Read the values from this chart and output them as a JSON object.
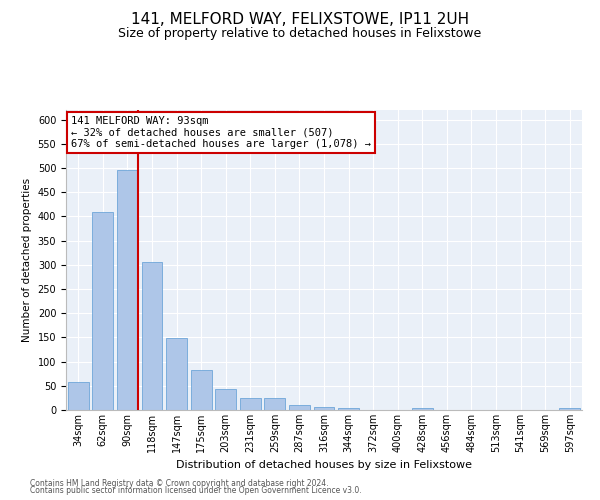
{
  "title": "141, MELFORD WAY, FELIXSTOWE, IP11 2UH",
  "subtitle": "Size of property relative to detached houses in Felixstowe",
  "xlabel": "Distribution of detached houses by size in Felixstowe",
  "ylabel": "Number of detached properties",
  "bar_color": "#aec6e8",
  "bar_edge_color": "#5b9bd5",
  "background_color": "#eaf0f8",
  "grid_color": "#ffffff",
  "annotation_box_color": "#cc0000",
  "annotation_line1": "141 MELFORD WAY: 93sqm",
  "annotation_line2": "← 32% of detached houses are smaller (507)",
  "annotation_line3": "67% of semi-detached houses are larger (1,078) →",
  "vline_color": "#cc0000",
  "vline_x_idx": 2,
  "categories": [
    "34sqm",
    "62sqm",
    "90sqm",
    "118sqm",
    "147sqm",
    "175sqm",
    "203sqm",
    "231sqm",
    "259sqm",
    "287sqm",
    "316sqm",
    "344sqm",
    "372sqm",
    "400sqm",
    "428sqm",
    "456sqm",
    "484sqm",
    "513sqm",
    "541sqm",
    "569sqm",
    "597sqm"
  ],
  "values": [
    57,
    410,
    495,
    305,
    148,
    82,
    44,
    24,
    24,
    10,
    7,
    5,
    1,
    0,
    4,
    1,
    0,
    1,
    0,
    1,
    4
  ],
  "ylim": [
    0,
    620
  ],
  "yticks": [
    0,
    50,
    100,
    150,
    200,
    250,
    300,
    350,
    400,
    450,
    500,
    550,
    600
  ],
  "footer1": "Contains HM Land Registry data © Crown copyright and database right 2024.",
  "footer2": "Contains public sector information licensed under the Open Government Licence v3.0.",
  "title_fontsize": 11,
  "subtitle_fontsize": 9,
  "annotation_fontsize": 7.5,
  "xlabel_fontsize": 8,
  "ylabel_fontsize": 7.5,
  "tick_fontsize": 7
}
